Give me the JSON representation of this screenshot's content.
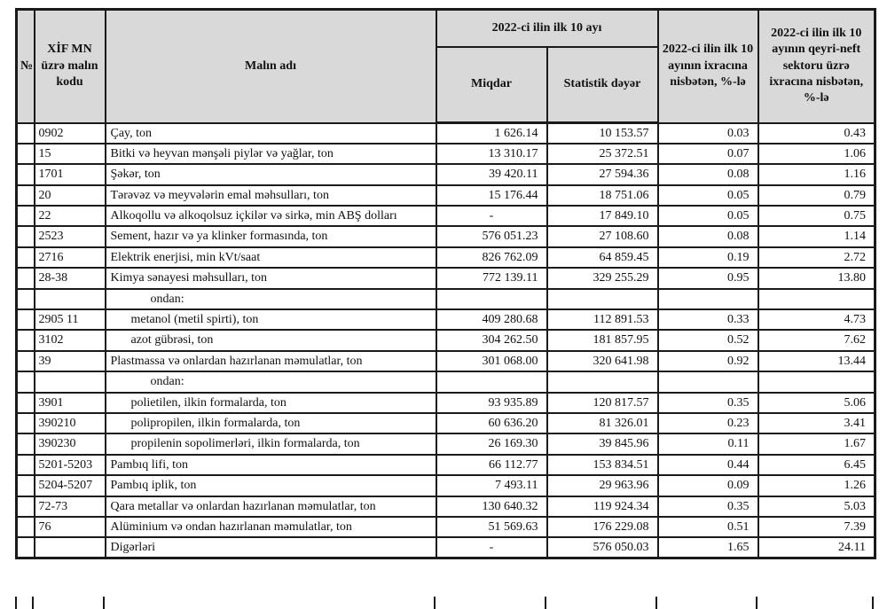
{
  "table": {
    "header": {
      "no": "№",
      "code": "XİF MN üzrə malın kodu",
      "name": "Malın adı",
      "period_group": "2022-ci ilin ilk 10 ayı",
      "quantity": "Miqdar",
      "stat_value": "Statistik dəyər",
      "share_total_export": "2022-ci ilin ilk 10 ayının ixracına nisbətən, %-lə",
      "share_nonoil_export": "2022-ci ilin ilk 10 ayının qeyri-neft sektoru üzrə ixracına nisbətən, %-lə"
    },
    "rows": [
      {
        "code": "0902",
        "name": "Çay, ton",
        "indent": 0,
        "qty": "1 626.14",
        "value": "10 153.57",
        "share": "0.03",
        "nonoil": "0.43"
      },
      {
        "code": "15",
        "name": "Bitki və heyvan mənşəli piylər və yağlar, ton",
        "indent": 0,
        "qty": "13 310.17",
        "value": "25 372.51",
        "share": "0.07",
        "nonoil": "1.06"
      },
      {
        "code": "1701",
        "name": "Şəkər, ton",
        "indent": 0,
        "qty": "39 420.11",
        "value": "27 594.36",
        "share": "0.08",
        "nonoil": "1.16"
      },
      {
        "code": "20",
        "name": "Tərəvəz və meyvələrin emal məhsulları, ton",
        "indent": 0,
        "qty": "15 176.44",
        "value": "18 751.06",
        "share": "0.05",
        "nonoil": "0.79"
      },
      {
        "code": "22",
        "name": "Alkoqollu və alkoqolsuz içkilər və sirkə, min ABŞ dolları",
        "indent": 0,
        "qty": "-",
        "value": "17 849.10",
        "share": "0.05",
        "nonoil": "0.75"
      },
      {
        "code": "2523",
        "name": "Sement, hazır və ya klinker formasında, ton",
        "indent": 0,
        "qty": "576 051.23",
        "value": "27 108.60",
        "share": "0.08",
        "nonoil": "1.14"
      },
      {
        "code": "2716",
        "name": "Elektrik enerjisi, min kVt/saat",
        "indent": 0,
        "qty": "826 762.09",
        "value": "64 859.45",
        "share": "0.19",
        "nonoil": "2.72"
      },
      {
        "code": "28-38",
        "name": "Kimya sənayesi məhsulları, ton",
        "indent": 0,
        "qty": "772 139.11",
        "value": "329 255.29",
        "share": "0.95",
        "nonoil": "13.80"
      },
      {
        "code": "",
        "name": "ondan:",
        "indent": 2,
        "qty": "",
        "value": "",
        "share": "",
        "nonoil": ""
      },
      {
        "code": "2905 11",
        "name": "metanol (metil spirti), ton",
        "indent": 1,
        "qty": "409 280.68",
        "value": "112 891.53",
        "share": "0.33",
        "nonoil": "4.73"
      },
      {
        "code": "3102",
        "name": "azot gübrəsi, ton",
        "indent": 1,
        "qty": "304 262.50",
        "value": "181 857.95",
        "share": "0.52",
        "nonoil": "7.62"
      },
      {
        "code": "39",
        "name": "Plastmassa və onlardan hazırlanan məmulatlar, ton",
        "indent": 0,
        "qty": "301 068.00",
        "value": "320 641.98",
        "share": "0.92",
        "nonoil": "13.44"
      },
      {
        "code": "",
        "name": "ondan:",
        "indent": 2,
        "qty": "",
        "value": "",
        "share": "",
        "nonoil": ""
      },
      {
        "code": "3901",
        "name": "polietilen, ilkin formalarda, ton",
        "indent": 1,
        "qty": "93 935.89",
        "value": "120 817.57",
        "share": "0.35",
        "nonoil": "5.06"
      },
      {
        "code": "390210",
        "name": "polipropilen, ilkin formalarda, ton",
        "indent": 1,
        "qty": "60 636.20",
        "value": "81 326.01",
        "share": "0.23",
        "nonoil": "3.41"
      },
      {
        "code": "390230",
        "name": "propilenin sopolimerləri, ilkin formalarda, ton",
        "indent": 1,
        "qty": "26 169.30",
        "value": "39 845.96",
        "share": "0.11",
        "nonoil": "1.67"
      },
      {
        "code": "5201-5203",
        "name": "Pambıq lifi, ton",
        "indent": 0,
        "qty": "66 112.77",
        "value": "153 834.51",
        "share": "0.44",
        "nonoil": "6.45"
      },
      {
        "code": "5204-5207",
        "name": "Pambıq iplik, ton",
        "indent": 0,
        "qty": "7 493.11",
        "value": "29 963.96",
        "share": "0.09",
        "nonoil": "1.26"
      },
      {
        "code": "72-73",
        "name": "Qara metallar və onlardan hazırlanan məmulatlar, ton",
        "indent": 0,
        "qty": "130 640.32",
        "value": "119 924.34",
        "share": "0.35",
        "nonoil": "5.03"
      },
      {
        "code": "76",
        "name": "Alüminium və ondan hazırlanan məmulatlar, ton",
        "indent": 0,
        "qty": "51 569.63",
        "value": "176 229.08",
        "share": "0.51",
        "nonoil": "7.39"
      },
      {
        "code": "",
        "name": "Digərləri",
        "indent": 0,
        "qty": "-",
        "value": "576 050.03",
        "share": "1.65",
        "nonoil": "24.11"
      }
    ]
  },
  "colors": {
    "header_bg": "#d9d9d9",
    "border": "#1a1a1a",
    "text": "#111111",
    "row_bg": "#ffffff"
  }
}
